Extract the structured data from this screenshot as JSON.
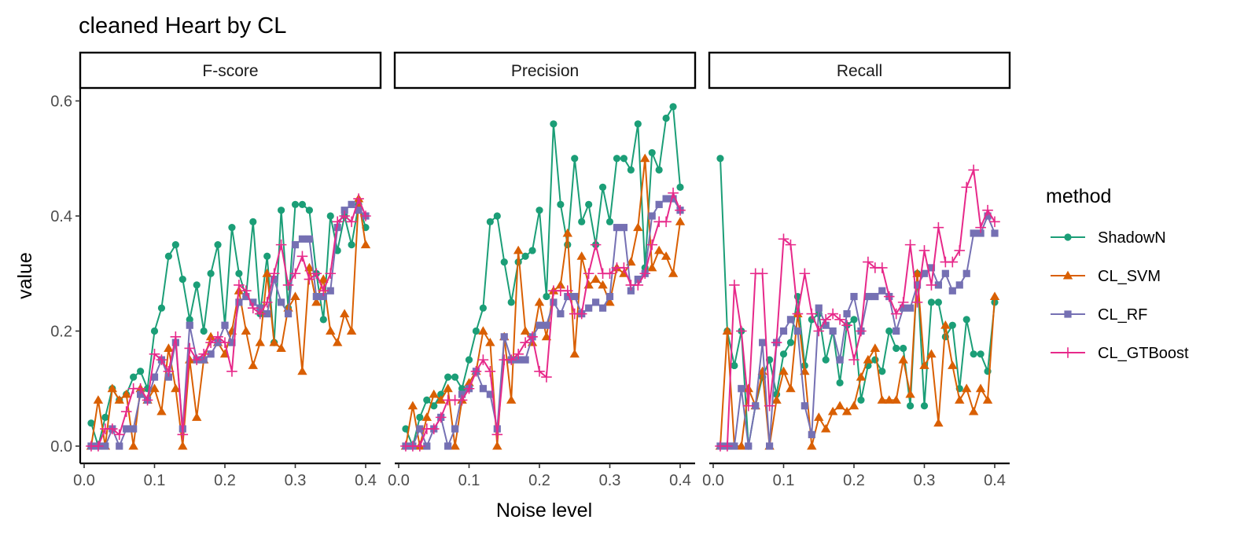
{
  "chart_data": {
    "type": "line",
    "title": "cleaned Heart by CL",
    "xlabel": "Noise level",
    "ylabel": "value",
    "xlim": [
      0,
      0.4
    ],
    "ylim": [
      0,
      0.6
    ],
    "x_ticks": [
      "0.0",
      "0.1",
      "0.2",
      "0.3",
      "0.4"
    ],
    "y_ticks": [
      "0.0",
      "0.2",
      "0.4",
      "0.6"
    ],
    "legend_title": "method",
    "legend_position": "right",
    "grid": false,
    "x": [
      0.01,
      0.02,
      0.03,
      0.04,
      0.05,
      0.06,
      0.07,
      0.08,
      0.09,
      0.1,
      0.11,
      0.12,
      0.13,
      0.14,
      0.15,
      0.16,
      0.17,
      0.18,
      0.19,
      0.2,
      0.21,
      0.22,
      0.23,
      0.24,
      0.25,
      0.26,
      0.27,
      0.28,
      0.29,
      0.3,
      0.31,
      0.32,
      0.33,
      0.34,
      0.35,
      0.36,
      0.37,
      0.38,
      0.39,
      0.4
    ],
    "series_styles": [
      {
        "name": "ShadowN",
        "color": "#1b9e77",
        "marker": "circle"
      },
      {
        "name": "CL_SVM",
        "color": "#d95f02",
        "marker": "triangle"
      },
      {
        "name": "CL_RF",
        "color": "#7570b3",
        "marker": "square"
      },
      {
        "name": "CL_GTBoost",
        "color": "#e7298a",
        "marker": "plus"
      }
    ],
    "panels": [
      {
        "name": "F-score",
        "series": [
          {
            "name": "ShadowN",
            "values": [
              0.04,
              0.0,
              0.05,
              0.1,
              0.08,
              0.09,
              0.12,
              0.13,
              0.1,
              0.2,
              0.24,
              0.33,
              0.35,
              0.29,
              0.22,
              0.28,
              0.2,
              0.3,
              0.35,
              0.21,
              0.38,
              0.3,
              0.26,
              0.39,
              0.23,
              0.33,
              0.18,
              0.41,
              0.24,
              0.42,
              0.42,
              0.41,
              0.3,
              0.22,
              0.4,
              0.34,
              0.4,
              0.35,
              0.42,
              0.38
            ]
          },
          {
            "name": "CL_SVM",
            "values": [
              0.0,
              0.08,
              0.0,
              0.1,
              0.08,
              0.09,
              0.0,
              0.1,
              0.08,
              0.1,
              0.06,
              0.17,
              0.1,
              0.0,
              0.15,
              0.05,
              0.15,
              0.19,
              0.18,
              0.16,
              0.2,
              0.27,
              0.2,
              0.14,
              0.18,
              0.3,
              0.18,
              0.17,
              0.24,
              0.26,
              0.13,
              0.31,
              0.25,
              0.29,
              0.2,
              0.18,
              0.23,
              0.2,
              0.43,
              0.35
            ]
          },
          {
            "name": "CL_RF",
            "values": [
              0.0,
              0.0,
              0.0,
              0.03,
              0.0,
              0.03,
              0.03,
              0.09,
              0.08,
              0.12,
              0.15,
              0.12,
              0.18,
              0.03,
              0.21,
              0.15,
              0.15,
              0.16,
              0.18,
              0.21,
              0.18,
              0.25,
              0.26,
              0.25,
              0.24,
              0.23,
              0.29,
              0.25,
              0.23,
              0.35,
              0.36,
              0.36,
              0.26,
              0.26,
              0.27,
              0.38,
              0.41,
              0.42,
              0.41,
              0.4
            ]
          },
          {
            "name": "CL_GTBoost",
            "values": [
              0.0,
              0.0,
              0.03,
              0.03,
              0.02,
              0.06,
              0.1,
              0.1,
              0.08,
              0.16,
              0.15,
              0.13,
              0.19,
              0.02,
              0.17,
              0.15,
              0.16,
              0.18,
              0.19,
              0.18,
              0.13,
              0.28,
              0.27,
              0.24,
              0.23,
              0.25,
              0.3,
              0.35,
              0.28,
              0.3,
              0.33,
              0.29,
              0.3,
              0.27,
              0.3,
              0.39,
              0.4,
              0.39,
              0.43,
              0.4
            ]
          }
        ]
      },
      {
        "name": "Precision",
        "series": [
          {
            "name": "ShadowN",
            "values": [
              0.03,
              0.0,
              0.05,
              0.08,
              0.07,
              0.09,
              0.12,
              0.12,
              0.1,
              0.15,
              0.2,
              0.24,
              0.39,
              0.4,
              0.32,
              0.25,
              0.32,
              0.33,
              0.34,
              0.41,
              0.26,
              0.56,
              0.42,
              0.35,
              0.5,
              0.39,
              0.42,
              0.35,
              0.45,
              0.39,
              0.5,
              0.5,
              0.48,
              0.56,
              0.31,
              0.51,
              0.48,
              0.57,
              0.59,
              0.45
            ]
          },
          {
            "name": "CL_SVM",
            "values": [
              0.0,
              0.07,
              0.0,
              0.05,
              0.09,
              0.08,
              0.1,
              0.0,
              0.08,
              0.11,
              0.13,
              0.2,
              0.18,
              0.0,
              0.19,
              0.08,
              0.34,
              0.2,
              0.18,
              0.25,
              0.19,
              0.27,
              0.28,
              0.37,
              0.16,
              0.33,
              0.28,
              0.29,
              0.28,
              0.25,
              0.31,
              0.3,
              0.32,
              0.38,
              0.5,
              0.31,
              0.34,
              0.33,
              0.3,
              0.39
            ]
          },
          {
            "name": "CL_RF",
            "values": [
              0.0,
              0.0,
              0.03,
              0.0,
              0.03,
              0.05,
              0.0,
              0.03,
              0.09,
              0.1,
              0.13,
              0.1,
              0.09,
              0.03,
              0.19,
              0.15,
              0.15,
              0.15,
              0.19,
              0.21,
              0.21,
              0.25,
              0.23,
              0.26,
              0.26,
              0.23,
              0.24,
              0.25,
              0.24,
              0.26,
              0.38,
              0.38,
              0.27,
              0.29,
              0.3,
              0.4,
              0.42,
              0.43,
              0.43,
              0.41
            ]
          },
          {
            "name": "CL_GTBoost",
            "values": [
              0.0,
              0.0,
              0.0,
              0.03,
              0.03,
              0.05,
              0.08,
              0.08,
              0.08,
              0.1,
              0.13,
              0.15,
              0.13,
              0.02,
              0.15,
              0.15,
              0.16,
              0.18,
              0.19,
              0.13,
              0.12,
              0.27,
              0.27,
              0.27,
              0.23,
              0.23,
              0.3,
              0.35,
              0.3,
              0.3,
              0.31,
              0.31,
              0.28,
              0.28,
              0.3,
              0.35,
              0.39,
              0.39,
              0.44,
              0.41
            ]
          }
        ]
      },
      {
        "name": "Recall",
        "series": [
          {
            "name": "ShadowN",
            "values": [
              0.5,
              0.2,
              0.14,
              0.2,
              0.0,
              0.07,
              0.12,
              0.15,
              0.09,
              0.16,
              0.18,
              0.26,
              0.14,
              0.22,
              0.23,
              0.15,
              0.2,
              0.11,
              0.21,
              0.22,
              0.08,
              0.14,
              0.15,
              0.13,
              0.2,
              0.17,
              0.17,
              0.07,
              0.3,
              0.07,
              0.25,
              0.25,
              0.19,
              0.21,
              0.1,
              0.22,
              0.16,
              0.16,
              0.13,
              0.25
            ]
          },
          {
            "name": "CL_SVM",
            "values": [
              0.0,
              0.2,
              0.0,
              0.0,
              0.1,
              0.07,
              0.13,
              0.0,
              0.08,
              0.13,
              0.1,
              0.23,
              0.13,
              0.0,
              0.05,
              0.03,
              0.06,
              0.07,
              0.06,
              0.07,
              0.12,
              0.15,
              0.17,
              0.08,
              0.08,
              0.08,
              0.15,
              0.09,
              0.3,
              0.14,
              0.16,
              0.04,
              0.21,
              0.14,
              0.08,
              0.1,
              0.06,
              0.1,
              0.08,
              0.26
            ]
          },
          {
            "name": "CL_RF",
            "values": [
              0.0,
              0.0,
              0.0,
              0.1,
              0.0,
              0.07,
              0.18,
              0.0,
              0.18,
              0.2,
              0.22,
              0.2,
              0.07,
              0.02,
              0.24,
              0.21,
              0.2,
              0.15,
              0.23,
              0.26,
              0.2,
              0.26,
              0.26,
              0.27,
              0.26,
              0.2,
              0.24,
              0.24,
              0.28,
              0.3,
              0.31,
              0.28,
              0.3,
              0.27,
              0.28,
              0.3,
              0.37,
              0.37,
              0.4,
              0.37
            ]
          },
          {
            "name": "CL_GTBoost",
            "values": [
              0.0,
              0.0,
              0.28,
              0.2,
              0.07,
              0.3,
              0.3,
              0.07,
              0.18,
              0.36,
              0.35,
              0.23,
              0.3,
              0.23,
              0.2,
              0.22,
              0.23,
              0.22,
              0.21,
              0.15,
              0.2,
              0.32,
              0.31,
              0.31,
              0.26,
              0.23,
              0.25,
              0.35,
              0.25,
              0.34,
              0.28,
              0.38,
              0.32,
              0.32,
              0.34,
              0.45,
              0.48,
              0.38,
              0.41,
              0.39
            ]
          }
        ]
      }
    ]
  }
}
